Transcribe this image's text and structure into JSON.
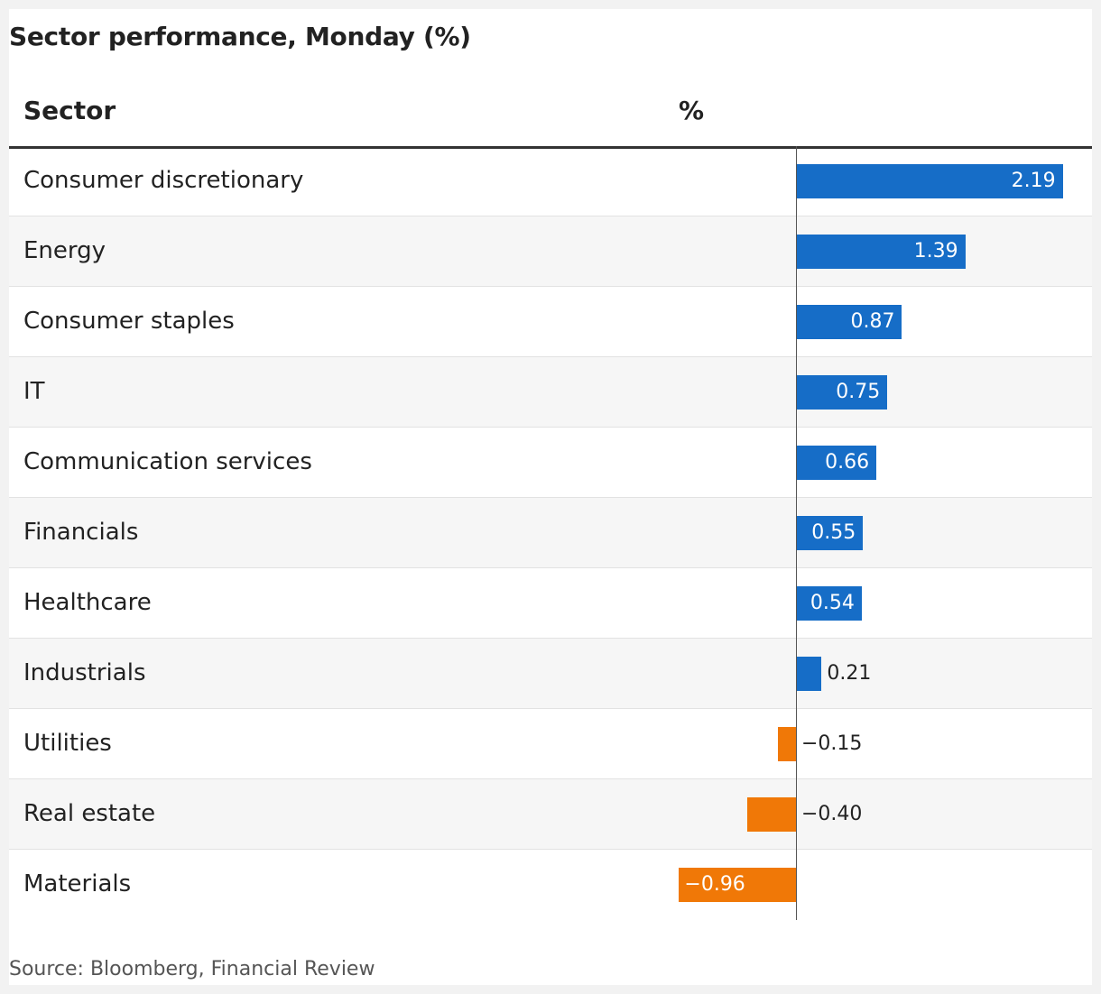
{
  "chart_data": {
    "type": "bar",
    "orientation": "horizontal",
    "title": "Sector performance, Monday (%)",
    "column_headers": {
      "category": "Sector",
      "value": "%"
    },
    "categories": [
      "Consumer discretionary",
      "Energy",
      "Consumer staples",
      "IT",
      "Communication services",
      "Financials",
      "Healthcare",
      "Industrials",
      "Utilities",
      "Real estate",
      "Materials"
    ],
    "values": [
      2.19,
      1.39,
      0.87,
      0.75,
      0.66,
      0.55,
      0.54,
      0.21,
      -0.15,
      -0.4,
      -0.96
    ],
    "value_labels": [
      "2.19",
      "1.39",
      "0.87",
      "0.75",
      "0.66",
      "0.55",
      "0.54",
      "0.21",
      "−0.15",
      "−0.40",
      "−0.96"
    ],
    "colors": {
      "positive": "#166dc7",
      "negative": "#f07807"
    },
    "source": "Source: Bloomberg, Financial Review"
  }
}
